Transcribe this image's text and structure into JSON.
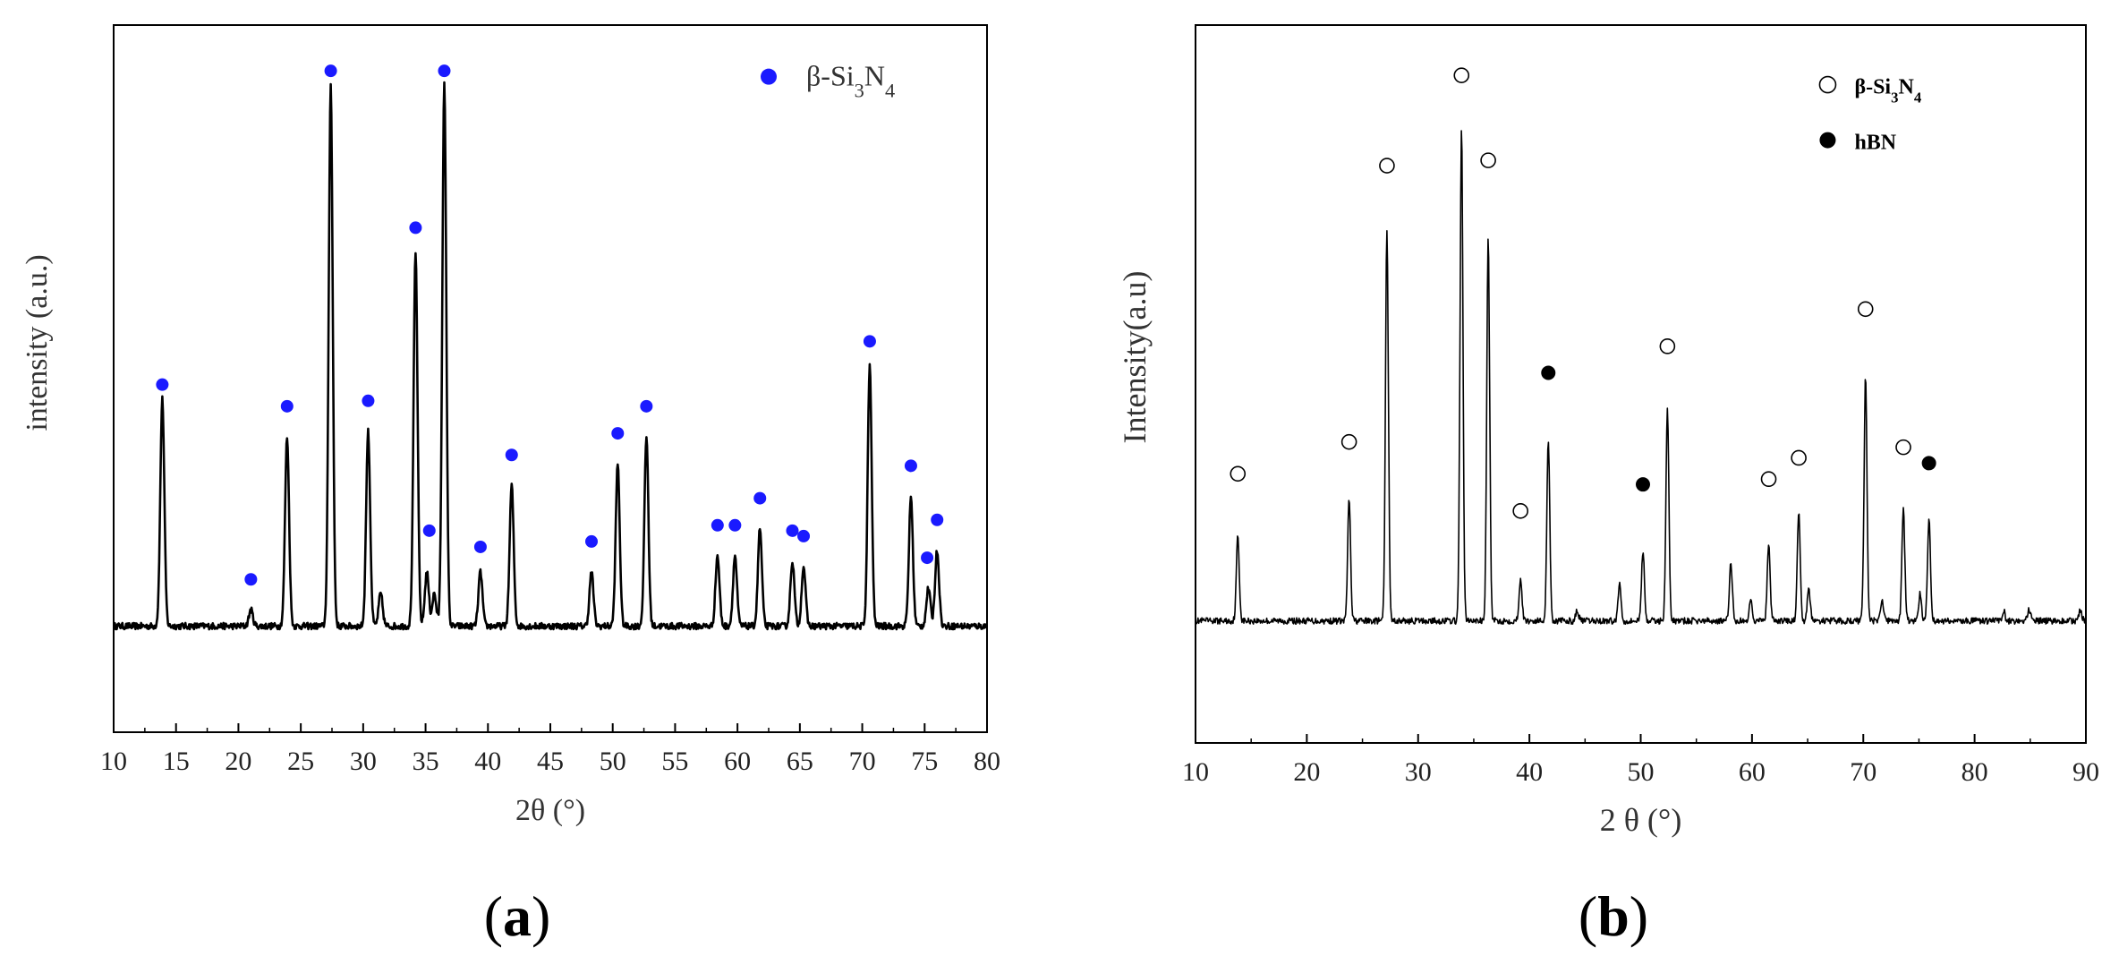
{
  "chart_data": [
    {
      "type": "line",
      "panel_label": "(a)",
      "xlabel": "2θ (°)",
      "ylabel": "intensity (a.u.)",
      "xlim": [
        10,
        80
      ],
      "ylim": [
        0,
        1
      ],
      "x_ticks": [
        10,
        15,
        20,
        25,
        30,
        35,
        40,
        45,
        50,
        55,
        60,
        65,
        70,
        75,
        80
      ],
      "grid": false,
      "legend_position": "top-right",
      "legend": [
        {
          "label": "β-Si₃N₄",
          "marker": "filled-circle",
          "color": "#1a1aff"
        }
      ],
      "series": [
        {
          "type": "xrd-pattern",
          "color": "#000000",
          "baseline": 0.2,
          "peaks": [
            {
              "x": 13.9,
              "y": 0.42
            },
            {
              "x": 21.0,
              "y": 0.03
            },
            {
              "x": 23.9,
              "y": 0.35
            },
            {
              "x": 27.4,
              "y": 1.0
            },
            {
              "x": 30.4,
              "y": 0.36
            },
            {
              "x": 31.4,
              "y": 0.06
            },
            {
              "x": 34.2,
              "y": 0.69
            },
            {
              "x": 35.1,
              "y": 0.1
            },
            {
              "x": 35.7,
              "y": 0.06
            },
            {
              "x": 36.5,
              "y": 1.0
            },
            {
              "x": 39.4,
              "y": 0.1
            },
            {
              "x": 41.9,
              "y": 0.26
            },
            {
              "x": 48.3,
              "y": 0.1
            },
            {
              "x": 50.4,
              "y": 0.3
            },
            {
              "x": 52.7,
              "y": 0.35
            },
            {
              "x": 58.4,
              "y": 0.13
            },
            {
              "x": 59.8,
              "y": 0.13
            },
            {
              "x": 61.8,
              "y": 0.18
            },
            {
              "x": 64.4,
              "y": 0.12
            },
            {
              "x": 65.3,
              "y": 0.11
            },
            {
              "x": 70.6,
              "y": 0.48
            },
            {
              "x": 73.9,
              "y": 0.24
            },
            {
              "x": 75.3,
              "y": 0.07
            },
            {
              "x": 76.0,
              "y": 0.14
            }
          ]
        }
      ],
      "markers": [
        {
          "phase": "β-Si₃N₄",
          "x": 13.9,
          "y": 0.42
        },
        {
          "phase": "β-Si₃N₄",
          "x": 21.0,
          "y": 0.06
        },
        {
          "phase": "β-Si₃N₄",
          "x": 23.9,
          "y": 0.38
        },
        {
          "phase": "β-Si₃N₄",
          "x": 27.4,
          "y": 1.0
        },
        {
          "phase": "β-Si₃N₄",
          "x": 30.4,
          "y": 0.39
        },
        {
          "phase": "β-Si₃N₄",
          "x": 34.2,
          "y": 0.71
        },
        {
          "phase": "β-Si₃N₄",
          "x": 35.3,
          "y": 0.15
        },
        {
          "phase": "β-Si₃N₄",
          "x": 36.5,
          "y": 1.0
        },
        {
          "phase": "β-Si₃N₄",
          "x": 39.4,
          "y": 0.12
        },
        {
          "phase": "β-Si₃N₄",
          "x": 41.9,
          "y": 0.29
        },
        {
          "phase": "β-Si₃N₄",
          "x": 48.3,
          "y": 0.13
        },
        {
          "phase": "β-Si₃N₄",
          "x": 50.4,
          "y": 0.33
        },
        {
          "phase": "β-Si₃N₄",
          "x": 52.7,
          "y": 0.38
        },
        {
          "phase": "β-Si₃N₄",
          "x": 58.4,
          "y": 0.16
        },
        {
          "phase": "β-Si₃N₄",
          "x": 59.8,
          "y": 0.16
        },
        {
          "phase": "β-Si₃N₄",
          "x": 61.8,
          "y": 0.21
        },
        {
          "phase": "β-Si₃N₄",
          "x": 64.4,
          "y": 0.15
        },
        {
          "phase": "β-Si₃N₄",
          "x": 65.3,
          "y": 0.14
        },
        {
          "phase": "β-Si₃N₄",
          "x": 70.6,
          "y": 0.5
        },
        {
          "phase": "β-Si₃N₄",
          "x": 73.9,
          "y": 0.27
        },
        {
          "phase": "β-Si₃N₄",
          "x": 75.2,
          "y": 0.1
        },
        {
          "phase": "β-Si₃N₄",
          "x": 76.0,
          "y": 0.17
        }
      ]
    },
    {
      "type": "line",
      "panel_label": "(b)",
      "xlabel": "2 θ (°)",
      "ylabel": "Intensity(a.u)",
      "xlim": [
        10,
        90
      ],
      "ylim": [
        0,
        1
      ],
      "x_ticks": [
        10,
        20,
        30,
        40,
        50,
        60,
        70,
        80,
        90
      ],
      "grid": false,
      "legend_position": "top-right",
      "legend": [
        {
          "label": "β-Si₃N₄",
          "marker": "open-circle",
          "color": "#000000"
        },
        {
          "label": "hBN",
          "marker": "filled-circle",
          "color": "#000000"
        }
      ],
      "series": [
        {
          "type": "xrd-pattern",
          "color": "#000000",
          "baseline": 0.07,
          "peaks": [
            {
              "x": 13.8,
              "y": 0.16
            },
            {
              "x": 23.8,
              "y": 0.23
            },
            {
              "x": 27.2,
              "y": 0.74
            },
            {
              "x": 33.9,
              "y": 0.93
            },
            {
              "x": 36.3,
              "y": 0.72
            },
            {
              "x": 39.2,
              "y": 0.08
            },
            {
              "x": 41.7,
              "y": 0.34
            },
            {
              "x": 44.3,
              "y": 0.02
            },
            {
              "x": 48.1,
              "y": 0.07
            },
            {
              "x": 50.2,
              "y": 0.13
            },
            {
              "x": 52.4,
              "y": 0.4
            },
            {
              "x": 58.1,
              "y": 0.11
            },
            {
              "x": 59.9,
              "y": 0.04
            },
            {
              "x": 61.5,
              "y": 0.14
            },
            {
              "x": 64.2,
              "y": 0.2
            },
            {
              "x": 65.1,
              "y": 0.06
            },
            {
              "x": 70.2,
              "y": 0.46
            },
            {
              "x": 71.7,
              "y": 0.04
            },
            {
              "x": 73.6,
              "y": 0.21
            },
            {
              "x": 75.1,
              "y": 0.05
            },
            {
              "x": 75.9,
              "y": 0.19
            },
            {
              "x": 82.6,
              "y": 0.02
            },
            {
              "x": 84.9,
              "y": 0.02
            },
            {
              "x": 89.5,
              "y": 0.02
            }
          ]
        }
      ],
      "markers": [
        {
          "phase": "β-Si₃N₄",
          "x": 13.8,
          "y": 0.25
        },
        {
          "phase": "β-Si₃N₄",
          "x": 23.8,
          "y": 0.31
        },
        {
          "phase": "β-Si₃N₄",
          "x": 27.2,
          "y": 0.83
        },
        {
          "phase": "β-Si₃N₄",
          "x": 33.9,
          "y": 1.0
        },
        {
          "phase": "β-Si₃N₄",
          "x": 36.3,
          "y": 0.84
        },
        {
          "phase": "β-Si₃N₄",
          "x": 39.2,
          "y": 0.18
        },
        {
          "phase": "hBN",
          "x": 41.7,
          "y": 0.44
        },
        {
          "phase": "hBN",
          "x": 50.2,
          "y": 0.23
        },
        {
          "phase": "β-Si₃N₄",
          "x": 52.4,
          "y": 0.49
        },
        {
          "phase": "β-Si₃N₄",
          "x": 61.5,
          "y": 0.24
        },
        {
          "phase": "β-Si₃N₄",
          "x": 64.2,
          "y": 0.28
        },
        {
          "phase": "β-Si₃N₄",
          "x": 70.2,
          "y": 0.56
        },
        {
          "phase": "β-Si₃N₄",
          "x": 73.6,
          "y": 0.3
        },
        {
          "phase": "hBN",
          "x": 75.9,
          "y": 0.27
        }
      ]
    }
  ]
}
